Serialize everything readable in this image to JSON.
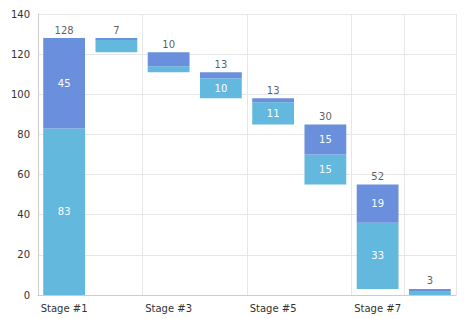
{
  "chart_data": {
    "type": "waterfall",
    "stacked": true,
    "data_labels": true,
    "grid": true,
    "categories": [
      "Stage #1",
      null,
      "Stage #3",
      null,
      "Stage #5",
      null,
      "Stage #7",
      null
    ],
    "totals": [
      128,
      7,
      10,
      13,
      13,
      30,
      52,
      3
    ],
    "series": [
      {
        "color": "#63b8dd",
        "values": [
          83,
          6,
          3,
          10,
          11,
          15,
          33,
          2
        ],
        "value_labels": [
          "83",
          null,
          null,
          "10",
          "11",
          "15",
          "33",
          null
        ]
      },
      {
        "color": "#6a8fdc",
        "values": [
          45,
          1,
          7,
          3,
          2,
          15,
          19,
          1
        ],
        "value_labels": [
          "45",
          null,
          null,
          null,
          null,
          "15",
          "19",
          null
        ]
      }
    ],
    "ylim": [
      0,
      140
    ],
    "yticks": [
      0,
      20,
      40,
      60,
      80,
      100,
      120,
      140
    ]
  }
}
